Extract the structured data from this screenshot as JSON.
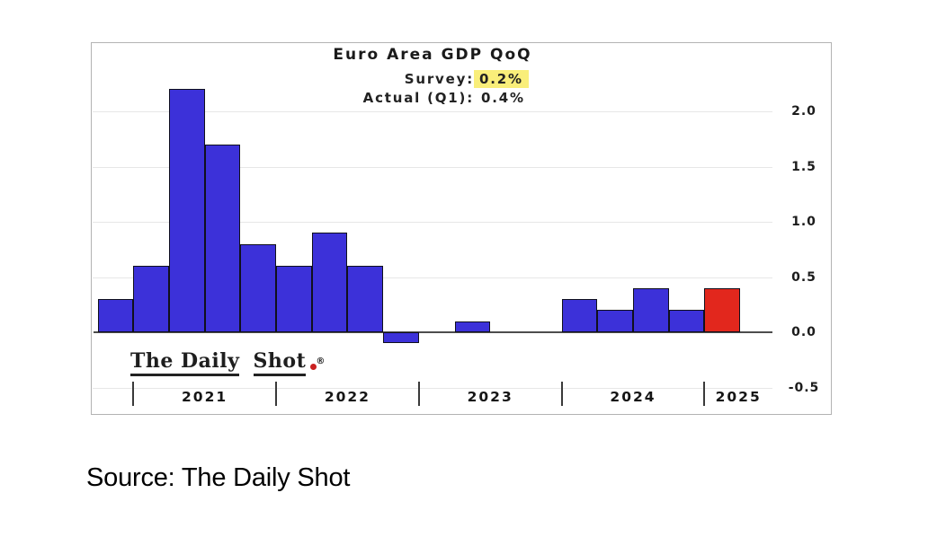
{
  "page": {
    "source_caption": "Source: The Daily Shot"
  },
  "chart": {
    "title": "Euro Area GDP QoQ",
    "annotation": {
      "rows": [
        {
          "label": "Survey:",
          "value": "0.2%",
          "highlighted": true
        },
        {
          "label": "Actual (Q1):",
          "value": "0.4%",
          "highlighted": false
        }
      ]
    },
    "logo": {
      "part1": "The Daily",
      "part2": "Shot",
      "registered": "®"
    },
    "colors": {
      "bar_blue": "#3c31d9",
      "bar_red": "#e2271d",
      "bar_border": "#10101c",
      "highlight_yellow": "#f9ee7a",
      "gridline": "#e7e7e7",
      "axis_line": "#4d4d4d",
      "logo_dot_red": "#c92020"
    }
  },
  "chart_data": {
    "type": "bar",
    "title": "Euro Area GDP QoQ",
    "quarters": [
      "2020 Q4",
      "2021 Q1",
      "2021 Q2",
      "2021 Q3",
      "2021 Q4",
      "2022 Q1",
      "2022 Q2",
      "2022 Q3",
      "2022 Q4",
      "2023 Q1",
      "2023 Q2",
      "2023 Q3",
      "2023 Q4",
      "2024 Q1",
      "2024 Q2",
      "2024 Q3",
      "2024 Q4",
      "2025 Q1"
    ],
    "values": [
      0.3,
      0.6,
      2.2,
      1.7,
      0.8,
      0.6,
      0.9,
      0.6,
      -0.1,
      0.0,
      0.1,
      0.0,
      0.0,
      0.3,
      0.2,
      0.4,
      0.2,
      0.4
    ],
    "bar_colors": [
      "blue",
      "blue",
      "blue",
      "blue",
      "blue",
      "blue",
      "blue",
      "blue",
      "blue",
      "blue",
      "blue",
      "blue",
      "blue",
      "blue",
      "blue",
      "blue",
      "blue",
      "red"
    ],
    "year_ticks": [
      "2021",
      "2022",
      "2023",
      "2024",
      "2025"
    ],
    "yticks": [
      2.0,
      1.5,
      1.0,
      0.5,
      0.0,
      -0.5
    ],
    "ylim": [
      -0.5,
      2.3
    ],
    "grid": "horizontal",
    "legend": "none",
    "annotations": [
      "Survey: 0.2%",
      "Actual (Q1): 0.4%"
    ]
  }
}
